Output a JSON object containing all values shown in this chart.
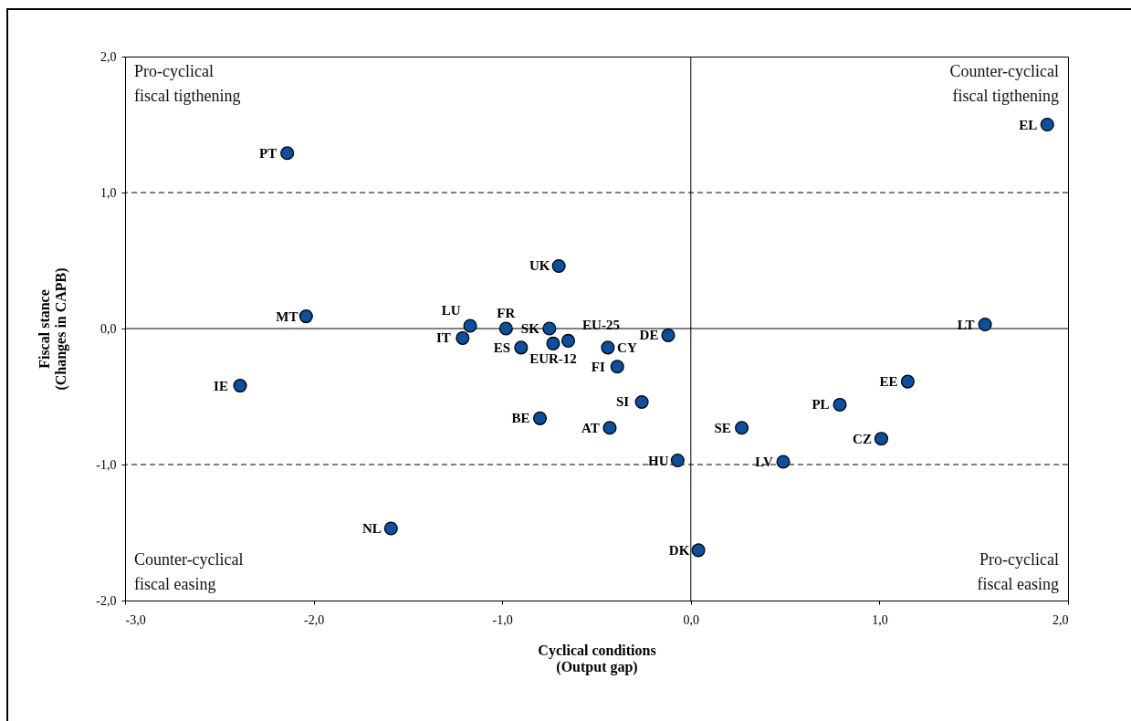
{
  "chart_data": {
    "type": "scatter",
    "xlabel": "Cyclical conditions\n(Output gap)",
    "ylabel": "Fiscal stance\n(Changes in CAPB)",
    "x": [
      -2.14,
      -2.04,
      -0.7,
      -1.17,
      -1.21,
      -0.98,
      -0.75,
      -0.9,
      -0.73,
      -0.65,
      -0.44,
      -0.12,
      -0.39,
      -0.26,
      -0.43,
      -0.07,
      0.04,
      0.27,
      0.49,
      0.79,
      1.15,
      1.01,
      1.56,
      1.89,
      -2.39,
      -1.59,
      -0.8
    ],
    "series": [
      {
        "color": "#0b4f9e",
        "values": [
          1.29,
          0.09,
          0.46,
          0.02,
          -0.07,
          0.0,
          0.0,
          -0.14,
          -0.11,
          -0.09,
          -0.14,
          -0.05,
          -0.28,
          -0.54,
          -0.73,
          -0.97,
          -1.63,
          -0.73,
          -0.98,
          -0.56,
          -0.39,
          -0.81,
          0.03,
          1.5,
          -0.42,
          -1.47,
          -0.66
        ],
        "value_labels": [
          "PT",
          "MT",
          "UK",
          "LU",
          "IT",
          "FR",
          "SK",
          "ES",
          "EUR-12",
          "EU-25",
          "CY",
          "DE",
          "FI",
          "SI",
          "AT",
          "HU",
          "DK",
          "SE",
          "LV",
          "PL",
          "EE",
          "CZ",
          "LT",
          "EL",
          "IE",
          "NL",
          "BE"
        ]
      }
    ],
    "xlim": [
      -3,
      2
    ],
    "xticks": [
      {
        "value": -3,
        "label": "-3,0"
      },
      {
        "value": -2,
        "label": "-2,0"
      },
      {
        "value": -1,
        "label": "-1,0"
      },
      {
        "value": 0,
        "label": "0,0"
      },
      {
        "value": 1,
        "label": "1,0"
      },
      {
        "value": 2,
        "label": "2,0"
      }
    ],
    "ylim": [
      -2,
      2
    ],
    "yticks": [
      {
        "value": -2,
        "label": "-2,0"
      },
      {
        "value": -1,
        "label": "-1,0"
      },
      {
        "value": 0,
        "label": "0,0"
      },
      {
        "value": 1,
        "label": "1,0"
      },
      {
        "value": 2,
        "label": "2,0"
      }
    ],
    "ref_lines": [
      {
        "axis": "y",
        "value": 1,
        "line_style": "dashed"
      },
      {
        "axis": "y",
        "value": -1,
        "line_style": "dashed"
      },
      {
        "axis": "y",
        "value": 0,
        "line_style": "solid"
      },
      {
        "axis": "x",
        "value": 0,
        "line_style": "solid"
      }
    ],
    "annotations": [
      "Pro-cyclical\nfiscal tigthening",
      "Counter-cyclical\nfiscal tigthening",
      "Counter-cyclical\nfiscal easing",
      "Pro-cyclical\nfiscal easing"
    ],
    "grid": false,
    "marker": "circle"
  }
}
